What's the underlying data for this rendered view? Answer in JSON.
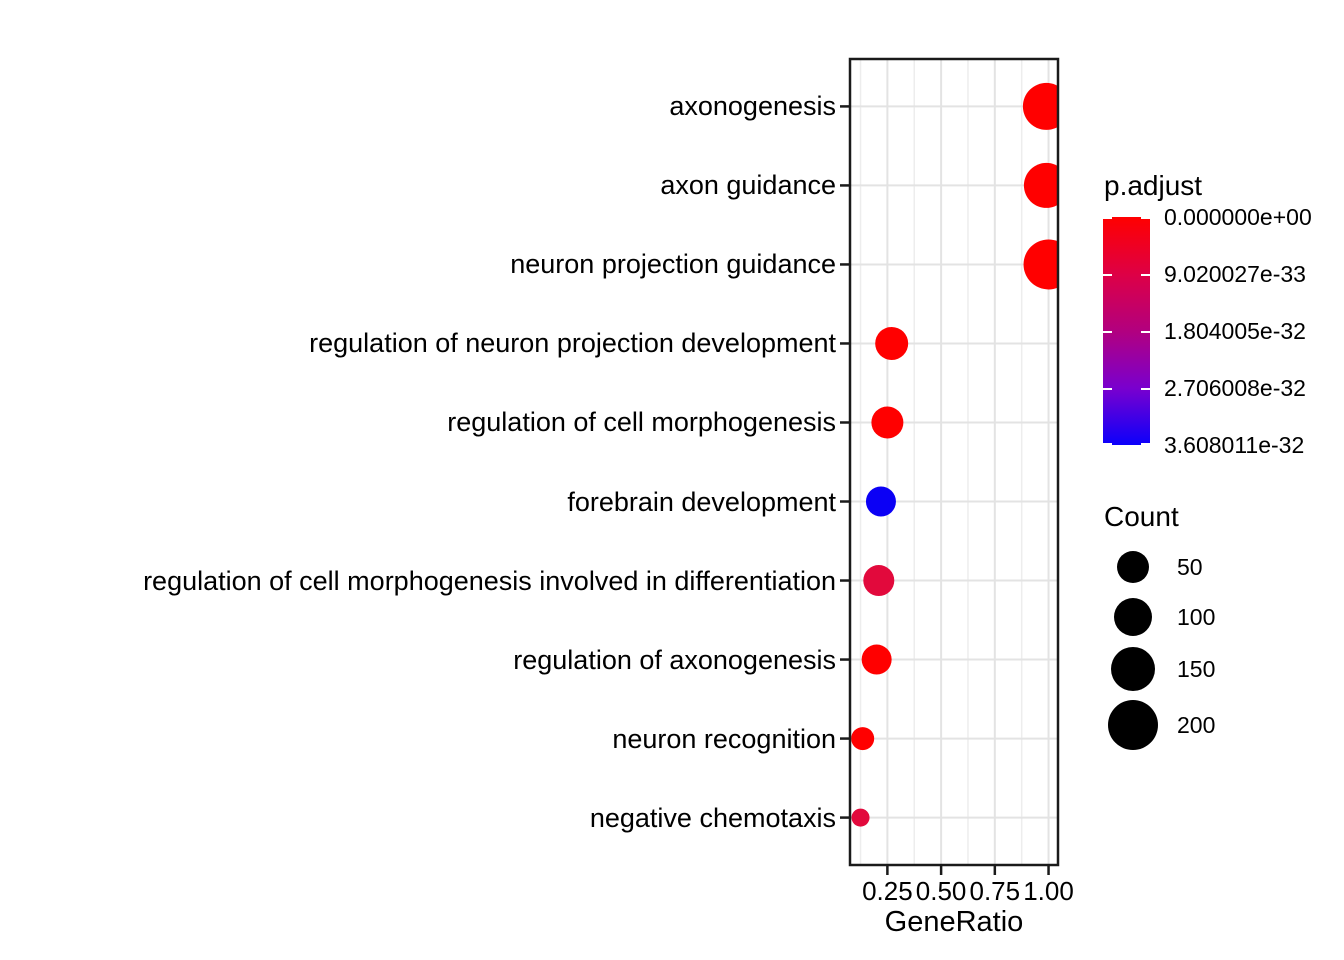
{
  "chart_data": {
    "type": "scatter",
    "variant": "enrichment-dotplot",
    "title": "",
    "xlabel": "GeneRatio",
    "ylabel": "",
    "xlim": [
      0.076,
      1.044
    ],
    "x_ticks": [
      "0.25",
      "0.50",
      "0.75",
      "1.00"
    ],
    "x_tick_values": [
      0.25,
      0.5,
      0.75,
      1.0
    ],
    "x_minor_values": [
      0.125,
      0.375,
      0.625,
      0.875
    ],
    "grid": true,
    "categories": [
      "axonogenesis",
      "axon guidance",
      "neuron projection guidance",
      "regulation of neuron projection development",
      "regulation of cell morphogenesis",
      "forebrain development",
      "regulation of cell morphogenesis involved in differentiation",
      "regulation of axonogenesis",
      "neuron recognition",
      "negative chemotaxis"
    ],
    "points": [
      {
        "label": "axonogenesis",
        "gene_ratio": 0.99,
        "count": 170,
        "p_adjust": 0,
        "color": "#FF0000",
        "radius_px": 23.5
      },
      {
        "label": "axon guidance",
        "gene_ratio": 0.99,
        "count": 150,
        "p_adjust": 0,
        "color": "#FF0000",
        "radius_px": 22.5
      },
      {
        "label": "neuron projection guidance",
        "gene_ratio": 1.0,
        "count": 200,
        "p_adjust": 0,
        "color": "#FF0000",
        "radius_px": 25
      },
      {
        "label": "regulation of neuron projection development",
        "gene_ratio": 0.27,
        "count": 55,
        "p_adjust": 0,
        "color": "#FF0000",
        "radius_px": 16.5
      },
      {
        "label": "regulation of cell morphogenesis",
        "gene_ratio": 0.25,
        "count": 50,
        "p_adjust": 0,
        "color": "#FF0000",
        "radius_px": 16
      },
      {
        "label": "forebrain development",
        "gene_ratio": 0.22,
        "count": 40,
        "p_adjust": 3.608e-32,
        "color": "#0B00F5",
        "radius_px": 15
      },
      {
        "label": "regulation of cell morphogenesis involved in differentiation",
        "gene_ratio": 0.21,
        "count": 45,
        "p_adjust": 9.02e-33,
        "color": "#E2093C",
        "radius_px": 15.5
      },
      {
        "label": "regulation of axonogenesis",
        "gene_ratio": 0.2,
        "count": 40,
        "p_adjust": 0,
        "color": "#FF0000",
        "radius_px": 15
      },
      {
        "label": "neuron recognition",
        "gene_ratio": 0.135,
        "count": 15,
        "p_adjust": 0,
        "color": "#FF0000",
        "radius_px": 11.5
      },
      {
        "label": "negative chemotaxis",
        "gene_ratio": 0.125,
        "count": 5,
        "p_adjust": 9.02e-33,
        "color": "#E2093C",
        "radius_px": 9
      }
    ],
    "color_legend": {
      "title": "p.adjust",
      "position": "right",
      "labels": [
        "0.000000e+00",
        "9.020027e-33",
        "1.804005e-32",
        "2.706008e-32",
        "3.608011e-32"
      ],
      "gradient": [
        "#FF0000",
        "#DE0045",
        "#B2007F",
        "#7A00CE",
        "#0B00FB"
      ]
    },
    "size_legend": {
      "title": "Count",
      "position": "right",
      "entries": [
        {
          "label": "50",
          "radius_px": 16
        },
        {
          "label": "100",
          "radius_px": 19
        },
        {
          "label": "150",
          "radius_px": 22
        },
        {
          "label": "200",
          "radius_px": 25
        }
      ]
    },
    "panel_colors": {
      "background": "#FFFFFF",
      "grid_major": "#E3E3E3",
      "grid_minor": "#EDEDED",
      "border": "#1A1A1A",
      "tick": "#1A1A1A"
    }
  }
}
